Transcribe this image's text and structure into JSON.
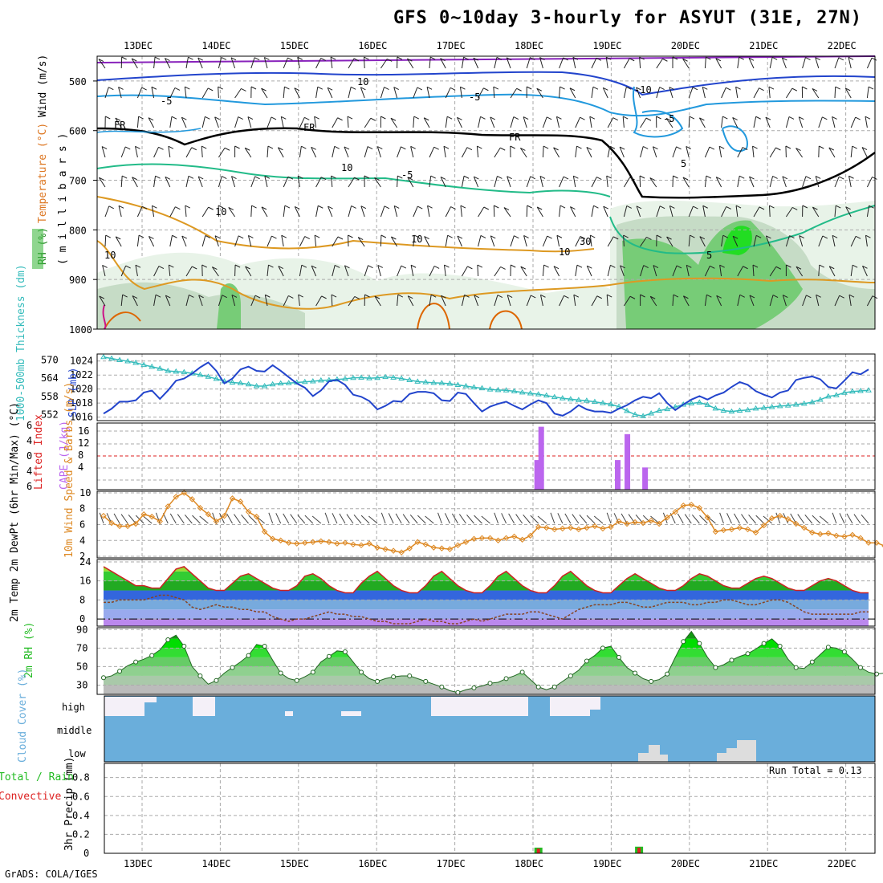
{
  "title": "GFS 0~10day 3-hourly for ASYUT (31E, 27N)",
  "credit": "GrADS: COLA/IGES",
  "run_total": "Run Total = 0.13",
  "colors": {
    "slp": "#2244cc",
    "thickness": "#33bbbb",
    "cape": "#bb66ee",
    "lifted_index": "#dd2222",
    "wind": "#dd8822",
    "temp": "#cc2222",
    "dewpt": "#884422",
    "rh": "#22bb22",
    "cloud": "#6aaedb",
    "cloud_fill": "#f4f0f8",
    "precip_total": "#22bb22",
    "precip_conv": "#dd2222"
  },
  "chart_data": [
    {
      "type": "heatmap",
      "name_label": "upper-air",
      "ylabel_lines": [
        {
          "text": "Wind (m/s)",
          "color": "#000000"
        },
        {
          "text": "Temperature (°C)",
          "color": "#dd7722"
        },
        {
          "text": "RH (%)",
          "color": "#228822"
        }
      ],
      "ylabel2": "( m i l l i b a r s )",
      "x_ticks": [
        "13DEC",
        "14DEC",
        "15DEC",
        "16DEC",
        "17DEC",
        "18DEC",
        "19DEC",
        "20DEC",
        "21DEC",
        "22DEC"
      ],
      "y_ticks": [
        "500",
        "600",
        "700",
        "800",
        "900",
        "1000"
      ],
      "contour_labels": [
        "10",
        "-5",
        "FR",
        "FR",
        "FR",
        "-5",
        "-10",
        "-5",
        "-5",
        "10",
        "10",
        "5",
        "10",
        "30",
        "10",
        "5",
        "10"
      ]
    },
    {
      "type": "line",
      "ylabel": "SLP (mb)",
      "ylabel2": "1000-500mb Thickness (dm)",
      "y_ticks_left": [
        "570",
        "564",
        "558",
        "552"
      ],
      "y_ticks_right": [
        "1024",
        "1022",
        "1020",
        "1018",
        "1016"
      ],
      "ylim_slp": [
        1015.5,
        1025
      ],
      "ylim_thk": [
        550,
        572
      ],
      "series": [
        {
          "name": "SLP (mb)",
          "values": [
            1016.5,
            1017.2,
            1018.2,
            1018.2,
            1018.4,
            1019.5,
            1019.8,
            1018.6,
            1019.8,
            1021.2,
            1021.5,
            1022.2,
            1023.1,
            1023.8,
            1022.6,
            1020.8,
            1021.5,
            1022.8,
            1023.2,
            1022.6,
            1022.5,
            1023.4,
            1022.6,
            1021.7,
            1020.8,
            1020.2,
            1019.0,
            1019.8,
            1021.1,
            1021.3,
            1020.6,
            1019.2,
            1018.9,
            1018.3,
            1017.1,
            1017.6,
            1018.3,
            1018.2,
            1019.3,
            1019.6,
            1019.6,
            1019.4,
            1018.4,
            1018.3,
            1019.5,
            1019.3,
            1018.0,
            1016.8,
            1017.5,
            1017.9,
            1018.2,
            1017.6,
            1017.1,
            1017.8,
            1018.4,
            1018.0,
            1016.5,
            1016.2,
            1016.8,
            1017.7,
            1017.1,
            1016.8,
            1016.8,
            1016.6,
            1017.2,
            1017.7,
            1018.4,
            1018.9,
            1018.7,
            1019.4,
            1018.0,
            1017.0,
            1017.8,
            1018.5,
            1019.0,
            1018.5,
            1019.1,
            1019.5,
            1020.3,
            1021.0,
            1020.6,
            1019.7,
            1019.2,
            1018.8,
            1019.5,
            1019.8,
            1021.3,
            1021.6,
            1021.8,
            1021.4,
            1020.3,
            1020.1,
            1021.2,
            1022.4,
            1022.1,
            1022.8
          ]
        },
        {
          "name": "1000-500mb Thickness (dm)",
          "values": [
            571.0,
            570.5,
            570.0,
            569.6,
            569.1,
            568.4,
            567.8,
            567.2,
            566.4,
            566.2,
            566.0,
            565.6,
            565.1,
            564.5,
            563.8,
            563.0,
            562.6,
            562.4,
            562.0,
            561.4,
            561.4,
            562.0,
            562.3,
            562.4,
            562.6,
            562.8,
            563.0,
            563.3,
            563.4,
            563.6,
            563.8,
            564.1,
            564.2,
            564.0,
            564.1,
            564.4,
            564.2,
            563.9,
            563.4,
            562.9,
            562.7,
            562.5,
            562.4,
            562.2,
            561.8,
            561.4,
            561.0,
            560.7,
            560.3,
            560.1,
            560.0,
            559.7,
            559.3,
            559.0,
            558.7,
            558.3,
            557.8,
            557.4,
            557.1,
            556.8,
            556.6,
            556.2,
            555.8,
            555.4,
            554.6,
            553.2,
            552.0,
            551.5,
            552.4,
            553.3,
            553.8,
            554.5,
            555.3,
            555.7,
            556.0,
            555.2,
            554.0,
            553.3,
            553.0,
            553.3,
            553.5,
            554.0,
            554.2,
            554.5,
            554.8,
            555.0,
            555.3,
            555.6,
            556.1,
            556.9,
            558.0,
            558.4,
            559.2,
            559.6,
            559.8,
            560.0
          ]
        }
      ]
    },
    {
      "type": "bar",
      "ylabel": "CAPE (J/kg)",
      "ylabel2": "Lifted Index",
      "y_ticks_left": [
        "6",
        "4",
        "0",
        "4",
        "6"
      ],
      "y_ticks_right": [
        "16",
        "12",
        "8",
        "4"
      ],
      "ylim": [
        0,
        18
      ],
      "bars": [
        {
          "x": 53.8,
          "value": 8
        },
        {
          "x": 54.3,
          "value": 17
        },
        {
          "x": 63.8,
          "value": 8
        },
        {
          "x": 65.0,
          "value": 15
        },
        {
          "x": 67.2,
          "value": 6
        }
      ]
    },
    {
      "type": "line",
      "ylabel": "10m Wind Speed & Barbs (m/s)",
      "y_ticks": [
        "10",
        "8",
        "6",
        "4",
        "2"
      ],
      "ylim": [
        1.8,
        10.2
      ],
      "series": [
        {
          "name": "10m Wind Speed",
          "values": [
            7.1,
            6.2,
            5.8,
            5.8,
            6.1,
            7.3,
            7.0,
            6.4,
            8.3,
            9.5,
            10.0,
            9.2,
            8.1,
            7.3,
            6.4,
            7.1,
            9.3,
            8.9,
            7.6,
            7.0,
            5.1,
            4.2,
            4.0,
            3.7,
            3.6,
            3.7,
            3.8,
            3.9,
            3.8,
            3.6,
            3.7,
            3.5,
            3.4,
            3.6,
            3.1,
            2.9,
            2.7,
            2.5,
            3.0,
            3.8,
            3.5,
            3.1,
            3.0,
            2.9,
            3.4,
            3.8,
            4.2,
            4.3,
            4.3,
            4.0,
            4.3,
            4.5,
            4.1,
            4.6,
            5.7,
            5.6,
            5.4,
            5.5,
            5.6,
            5.4,
            5.6,
            5.8,
            5.5,
            5.7,
            6.4,
            6.1,
            6.3,
            6.2,
            6.5,
            6.1,
            6.9,
            7.6,
            8.4,
            8.5,
            8.1,
            6.9,
            5.1,
            5.3,
            5.4,
            5.6,
            5.4,
            5.0,
            5.9,
            6.8,
            7.1,
            6.7,
            6.1,
            5.6,
            5.0,
            4.8,
            4.9,
            4.6,
            4.5,
            4.7,
            4.3,
            3.7,
            3.7,
            3.3,
            3.2,
            3.0,
            2.8
          ]
        }
      ]
    },
    {
      "type": "area",
      "ylabel": "2m Temp 2m DewPt (6hr Min/Max) (°C)",
      "y_ticks": [
        "24",
        "16",
        "8",
        "0"
      ],
      "ylim": [
        -3,
        25
      ],
      "series": [
        {
          "name": "2m Temp",
          "values": [
            22,
            20,
            18,
            16,
            14,
            14,
            13,
            13,
            17,
            21,
            22,
            19,
            16,
            13,
            12,
            12,
            15,
            18,
            19,
            17,
            15,
            13,
            12,
            12,
            14,
            18,
            19,
            17,
            14,
            12,
            11,
            11,
            15,
            18,
            20,
            17,
            14,
            12,
            11,
            11,
            14,
            18,
            20,
            17,
            14,
            12,
            11,
            11,
            14,
            18,
            20,
            17,
            14,
            12,
            11,
            11,
            14,
            18,
            20,
            17,
            14,
            12,
            11,
            11,
            14,
            17,
            19,
            17,
            15,
            13,
            12,
            12,
            14,
            17,
            19,
            18,
            16,
            14,
            13,
            13,
            15,
            17,
            18,
            17,
            15,
            13,
            12,
            12,
            14,
            16,
            17,
            16,
            14,
            12,
            11,
            11
          ]
        },
        {
          "name": "2m DewPt",
          "values": [
            7,
            7,
            8,
            8,
            8,
            8,
            9,
            10,
            10,
            9,
            8,
            5,
            4,
            5,
            6,
            5,
            5,
            4,
            4,
            3,
            3,
            1,
            0,
            -1,
            0,
            0,
            1,
            2,
            3,
            2,
            2,
            1,
            1,
            0,
            -1,
            -1,
            -2,
            -2,
            -2,
            -1,
            0,
            -1,
            -1,
            -2,
            -2,
            -1,
            0,
            -1,
            0,
            1,
            2,
            2,
            2,
            3,
            3,
            2,
            1,
            0,
            2,
            4,
            5,
            6,
            6,
            6,
            7,
            7,
            6,
            5,
            5,
            6,
            7,
            7,
            7,
            6,
            6,
            7,
            7,
            8,
            8,
            7,
            6,
            6,
            7,
            8,
            8,
            7,
            5,
            3,
            2,
            2,
            2,
            2,
            2,
            2,
            3,
            3
          ]
        }
      ]
    },
    {
      "type": "area",
      "ylabel": "2m RH (%)",
      "y_ticks": [
        "90",
        "70",
        "50",
        "30"
      ],
      "ylim": [
        20,
        92
      ],
      "series": [
        {
          "name": "2m RH",
          "values": [
            38,
            40,
            45,
            51,
            55,
            58,
            62,
            68,
            79,
            84,
            72,
            50,
            40,
            31,
            35,
            43,
            49,
            55,
            62,
            74,
            72,
            57,
            43,
            37,
            35,
            39,
            44,
            55,
            61,
            67,
            66,
            55,
            44,
            37,
            34,
            37,
            39,
            40,
            40,
            37,
            34,
            31,
            28,
            24,
            22,
            25,
            27,
            29,
            32,
            33,
            37,
            40,
            44,
            36,
            28,
            25,
            28,
            34,
            40,
            46,
            56,
            62,
            70,
            72,
            60,
            49,
            43,
            37,
            34,
            36,
            42,
            60,
            77,
            88,
            75,
            60,
            49,
            52,
            57,
            61,
            64,
            69,
            75,
            80,
            72,
            58,
            49,
            48,
            55,
            63,
            71,
            70,
            66,
            58,
            49,
            44,
            42,
            43,
            46,
            50,
            54,
            58,
            57
          ]
        }
      ]
    },
    {
      "type": "area",
      "ylabel": "Cloud Cover (%)",
      "y_ticks": [
        "high",
        "middle",
        "low"
      ]
    },
    {
      "type": "bar",
      "ylabel": "3hr Precip (mm)",
      "ylabel2": "Total / Rain",
      "ylabel3": "Convective",
      "y_ticks": [
        "0.8",
        "0.6",
        "0.4",
        "0.2",
        "0"
      ],
      "ylim": [
        0,
        0.95
      ],
      "x_ticks": [
        "13DEC",
        "14DEC",
        "15DEC",
        "16DEC",
        "17DEC",
        "18DEC",
        "19DEC",
        "20DEC",
        "21DEC",
        "22DEC"
      ],
      "bars": [
        {
          "x": 54.0,
          "total": 0.06,
          "conv": 0.05
        },
        {
          "x": 66.5,
          "total": 0.07,
          "conv": 0.06
        }
      ]
    }
  ]
}
